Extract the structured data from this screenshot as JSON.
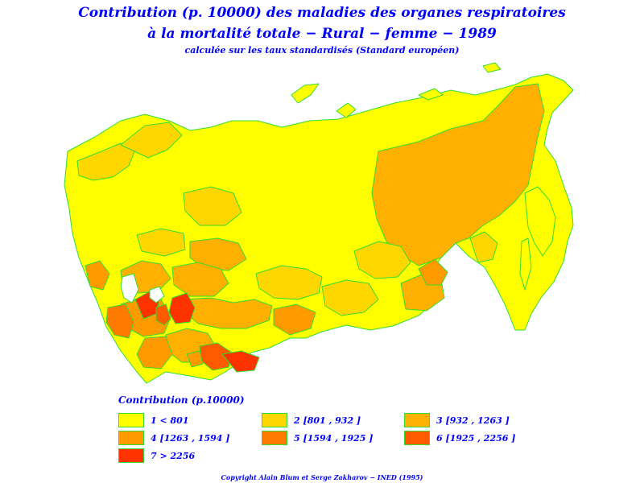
{
  "title": {
    "line1": "Contribution (p. 10000) des maladies des organes respiratoires",
    "line2": "à la mortalité totale  −  Rural  −  femme  −  1989",
    "line3": "calculée sur les taux standardisés (Standard européen)"
  },
  "legend": {
    "title": "Contribution  (p.10000)",
    "items": [
      {
        "label": "1  <  801",
        "color": "#ffff00"
      },
      {
        "label": "2  [801  ,  932  ]",
        "color": "#ffd700"
      },
      {
        "label": "3  [932  ,  1263  ]",
        "color": "#ffb000"
      },
      {
        "label": "4  [1263  ,  1594  ]",
        "color": "#ff9a00"
      },
      {
        "label": "5  [1594  ,  1925  ]",
        "color": "#ff7a00"
      },
      {
        "label": "6  [1925  ,  2256  ]",
        "color": "#ff5a00"
      },
      {
        "label": "7  >  2256",
        "color": "#ff3300"
      }
    ]
  },
  "map_colors": {
    "border": "#33dd33",
    "class1": "#ffff00",
    "class2": "#ffd700",
    "class3": "#ffb000",
    "class4": "#ff9a00",
    "class5": "#ff7a00",
    "class6": "#ff5a00",
    "class7": "#ff3300"
  },
  "copyright": "Copyright  Alain  Blum  et  Serge  Zakharov  −  INED  (1995)"
}
